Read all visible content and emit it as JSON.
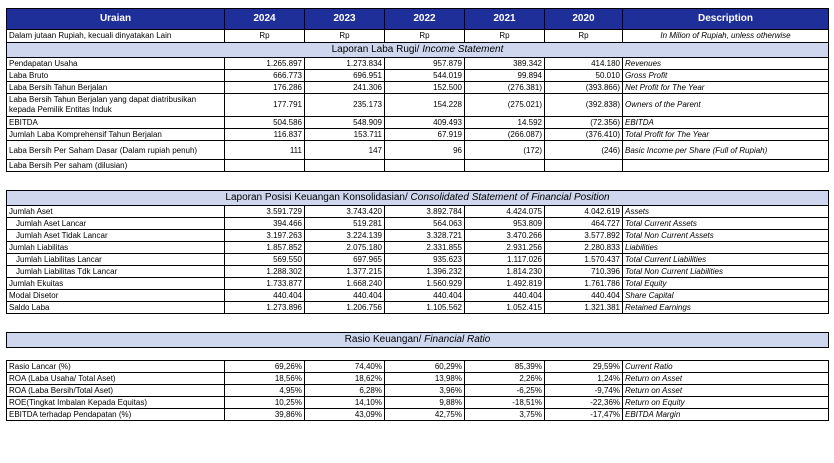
{
  "header": {
    "uraian": "Uraian",
    "years": [
      "2024",
      "2023",
      "2022",
      "2021",
      "2020"
    ],
    "description": "Description"
  },
  "units": {
    "left": "Dalam jutaan Rupiah, kecuali dinyatakan Lain",
    "currency": [
      "Rp",
      "Rp",
      "Rp",
      "Rp",
      "Rp"
    ],
    "right": "In Milion of Rupiah, unless otherwise"
  },
  "sections": {
    "income": {
      "title": "Laporan Laba Rugi/",
      "title_en": " Income Statement"
    },
    "position": {
      "title": "Laporan Posisi Keuangan Konsolidasian/",
      "title_en": " Consolidated Statement of Financial Position"
    },
    "ratio": {
      "title": "Rasio Keuangan/",
      "title_en": " Financial Ratio"
    }
  },
  "income_rows": [
    {
      "label": "Pendapatan Usaha",
      "values": [
        "1.265.897",
        "1.273.834",
        "957.879",
        "389.342",
        "414.180"
      ],
      "desc": "Revenues"
    },
    {
      "label": "Laba Bruto",
      "values": [
        "666.773",
        "696.951",
        "544.019",
        "99.894",
        "50.010"
      ],
      "desc": "Gross Profit"
    },
    {
      "label": "Laba Bersih Tahun Berjalan",
      "values": [
        "176.286",
        "241.306",
        "152.500",
        "(276.381)",
        "(393.866)"
      ],
      "desc": "Net Profit for The Year"
    },
    {
      "label": "Laba Bersih Tahun Berjalan yang dapat diatribusikan kepada Pemilik Entitas Induk",
      "values": [
        "177.791",
        "235.173",
        "154.228",
        "(275.021)",
        "(392.838)"
      ],
      "desc": "Owners of the Parent"
    },
    {
      "label": "EBITDA",
      "values": [
        "504.586",
        "548.909",
        "409.493",
        "14.592",
        "(72.356)"
      ],
      "desc": "EBITDA"
    },
    {
      "label": "Jumlah Laba Komprehensif Tahun Berjalan",
      "values": [
        "116.837",
        "153.711",
        "67.919",
        "(266.087)",
        "(376.410)"
      ],
      "desc": "Total Profit for The Year"
    },
    {
      "label": "Laba Bersih Per Saham Dasar (Dalam rupiah penuh)",
      "values": [
        "111",
        "147",
        "96",
        "(172)",
        "(246)"
      ],
      "desc": "Basic Income per Share (Full of Rupiah)"
    },
    {
      "label": "Laba Bersih Per saham (dilusian)",
      "values": [
        "",
        "",
        "",
        "",
        ""
      ],
      "desc": ""
    }
  ],
  "position_rows": [
    {
      "label": "Jumlah Aset",
      "values": [
        "3.591.729",
        "3.743.420",
        "3.892.784",
        "4.424.075",
        "4.042.619"
      ],
      "desc": "Assets"
    },
    {
      "label": "Jumlah Aset Lancar",
      "values": [
        "394.466",
        "519.281",
        "564.063",
        "953.809",
        "464.727"
      ],
      "desc": "Total Current Assets"
    },
    {
      "label": "Jumlah Aset Tidak Lancar",
      "values": [
        "3.197.263",
        "3.224.139",
        "3.328.721",
        "3.470.266",
        "3.577.892"
      ],
      "desc": "Total Non Current Assets"
    },
    {
      "label": "Jumlah Liabilitas",
      "values": [
        "1.857.852",
        "2.075.180",
        "2.331.855",
        "2.931.256",
        "2.280.833"
      ],
      "desc": "Liabilities"
    },
    {
      "label": "Jumlah Liabilitas Lancar",
      "values": [
        "569.550",
        "697.965",
        "935.623",
        "1.117.026",
        "1.570.437"
      ],
      "desc": "Total Current Liabilities"
    },
    {
      "label": "Jumlah Liabilitas Tdk Lancar",
      "values": [
        "1.288.302",
        "1.377.215",
        "1.396.232",
        "1.814.230",
        "710.396"
      ],
      "desc": "Total Non Current Liabilities"
    },
    {
      "label": "Jumlah Ekuitas",
      "values": [
        "1.733.877",
        "1.668.240",
        "1.560.929",
        "1.492.819",
        "1.761.786"
      ],
      "desc": "Total Equity"
    },
    {
      "label": "Modal Disetor",
      "values": [
        "440.404",
        "440.404",
        "440.404",
        "440.404",
        "440.404"
      ],
      "desc": "Share Capital"
    },
    {
      "label": "Saldo Laba",
      "values": [
        "1.273.896",
        "1.206.756",
        "1.105.562",
        "1.052.415",
        "1.321.381"
      ],
      "desc": "Retained Earnings"
    }
  ],
  "ratio_rows": [
    {
      "label": "Rasio Lancar (%)",
      "values": [
        "69,26%",
        "74,40%",
        "60,29%",
        "85,39%",
        "29,59%"
      ],
      "desc": "Current Ratio"
    },
    {
      "label": "ROA (Laba Usaha/ Total Aset)",
      "values": [
        "18,56%",
        "18,62%",
        "13,98%",
        "2,26%",
        "1,24%"
      ],
      "desc": "Return on Asset"
    },
    {
      "label": "ROA (Laba Bersih/Total Aset)",
      "values": [
        "4,95%",
        "6,28%",
        "3,96%",
        "-6,25%",
        "-9,74%"
      ],
      "desc": "Return on Asset"
    },
    {
      "label": "ROE(Tingkat Imbalan Kepada Equitas)",
      "values": [
        "10,25%",
        "14,10%",
        "9,88%",
        "-18,51%",
        "-22,36%"
      ],
      "desc": "Return on Equity"
    },
    {
      "label": "EBITDA terhadap Pendapatan (%)",
      "values": [
        "39,86%",
        "43,09%",
        "42,75%",
        "3,75%",
        "-17,47%"
      ],
      "desc": "EBITDA Margin"
    }
  ]
}
